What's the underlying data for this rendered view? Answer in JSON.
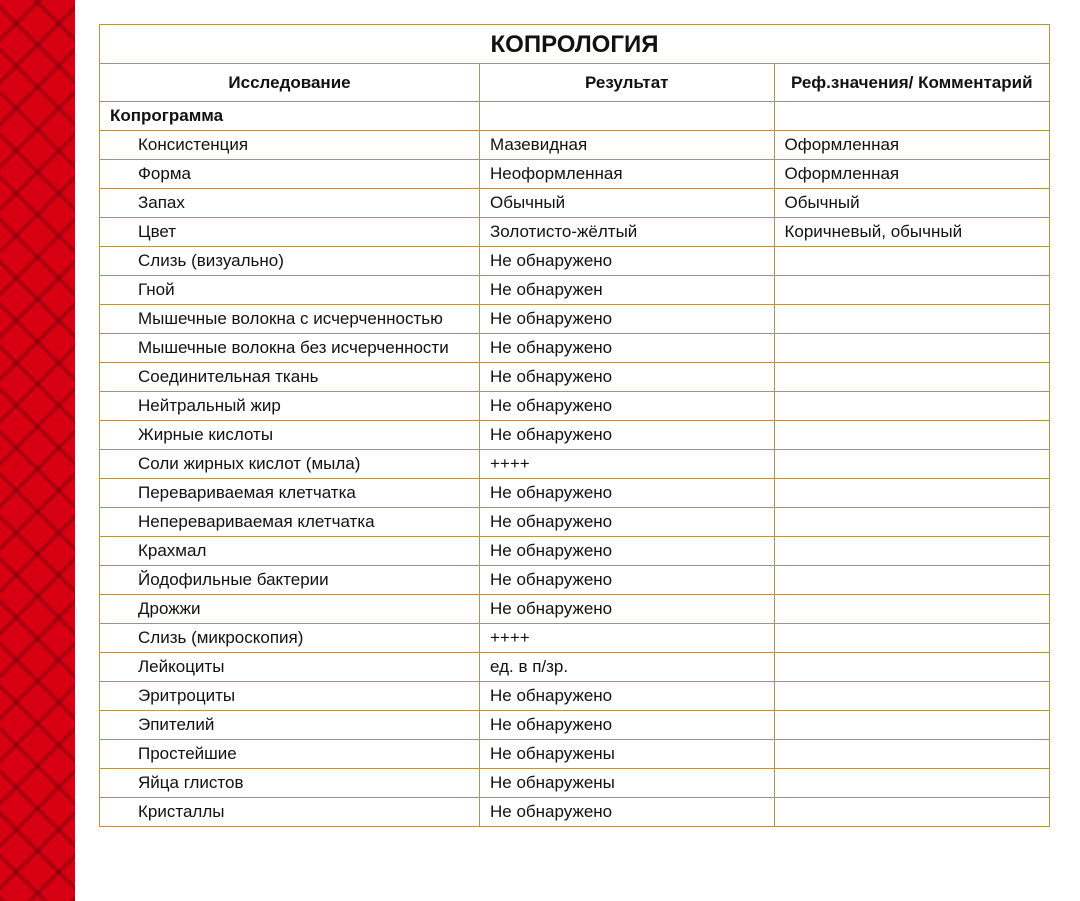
{
  "title": "КОПРОЛОГИЯ",
  "headers": {
    "study": "Исследование",
    "result": "Результат",
    "ref": "Реф.значения/\nКомментарий"
  },
  "section": "Копрограмма",
  "colors": {
    "border": "#b19455",
    "redbar": "#d60012",
    "text": "#111111",
    "background": "#ffffff"
  },
  "table": {
    "type": "table",
    "col_widths_pct": [
      40,
      31,
      29
    ],
    "border_color": "#b19455",
    "title_fontsize": 24,
    "header_fontsize": 17,
    "cell_fontsize": 17
  },
  "rows": [
    {
      "study": "Консистенция",
      "result": "Мазевидная",
      "ref": "Оформленная"
    },
    {
      "study": "Форма",
      "result": "Неоформленная",
      "ref": "Оформленная"
    },
    {
      "study": "Запах",
      "result": "Обычный",
      "ref": "Обычный"
    },
    {
      "study": "Цвет",
      "result": "Золотисто-жёлтый",
      "ref": "Коричневый, обычный"
    },
    {
      "study": "Слизь (визуально)",
      "result": "Не обнаружено",
      "ref": ""
    },
    {
      "study": "Гной",
      "result": "Не обнаружен",
      "ref": ""
    },
    {
      "study": "Мышечные волокна с исчерченностью",
      "result": "Не обнаружено",
      "ref": ""
    },
    {
      "study": "Мышечные волокна без исчерченности",
      "result": "Не обнаружено",
      "ref": ""
    },
    {
      "study": "Соединительная ткань",
      "result": "Не обнаружено",
      "ref": ""
    },
    {
      "study": "Нейтральный жир",
      "result": "Не обнаружено",
      "ref": ""
    },
    {
      "study": "Жирные кислоты",
      "result": "Не обнаружено",
      "ref": ""
    },
    {
      "study": "Соли жирных кислот (мыла)",
      "result": "++++",
      "ref": ""
    },
    {
      "study": "Перевариваемая клетчатка",
      "result": "Не обнаружено",
      "ref": ""
    },
    {
      "study": "Неперевариваемая клетчатка",
      "result": "Не обнаружено",
      "ref": ""
    },
    {
      "study": "Крахмал",
      "result": "Не обнаружено",
      "ref": ""
    },
    {
      "study": "Йодофильные бактерии",
      "result": "Не обнаружено",
      "ref": ""
    },
    {
      "study": "Дрожжи",
      "result": "Не обнаружено",
      "ref": ""
    },
    {
      "study": "Слизь (микроскопия)",
      "result": "++++",
      "ref": ""
    },
    {
      "study": "Лейкоциты",
      "result": "ед. в п/зр.",
      "ref": ""
    },
    {
      "study": "Эритроциты",
      "result": "Не обнаружено",
      "ref": ""
    },
    {
      "study": "Эпителий",
      "result": "Не обнаружено",
      "ref": ""
    },
    {
      "study": "Простейшие",
      "result": "Не обнаружены",
      "ref": ""
    },
    {
      "study": "Яйца глистов",
      "result": "Не обнаружены",
      "ref": ""
    },
    {
      "study": "Кристаллы",
      "result": "Не обнаружено",
      "ref": ""
    }
  ]
}
